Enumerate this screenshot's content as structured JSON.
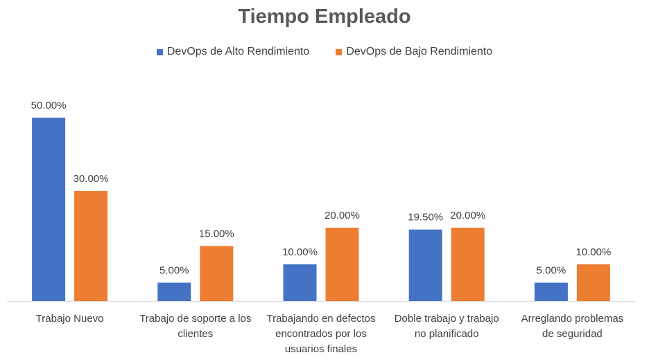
{
  "chart_data": {
    "type": "bar",
    "title": "Tiempo Empleado",
    "categories": [
      "Trabajo Nuevo",
      "Trabajo de soporte a los clientes",
      "Trabajando en defectos encontrados por los usuarios finales",
      "Doble trabajo y trabajo no planificado",
      "Arreglando problemas de seguridad"
    ],
    "category_lines": [
      [
        "Trabajo Nuevo"
      ],
      [
        "Trabajo de soporte a los",
        "clientes"
      ],
      [
        "Trabajando en defectos",
        "encontrados por los",
        "usuarios finales"
      ],
      [
        "Doble trabajo y trabajo",
        "no planificado"
      ],
      [
        "Arreglando problemas",
        "de seguridad"
      ]
    ],
    "series": [
      {
        "name": "DevOps de Alto Rendimiento",
        "color": "#4472C4",
        "values": [
          50.0,
          5.0,
          10.0,
          19.5,
          5.0
        ],
        "labels": [
          "50.00%",
          "5.00%",
          "10.00%",
          "19.50%",
          "5.00%"
        ]
      },
      {
        "name": "DevOps de Bajo Rendimiento",
        "color": "#ED7D31",
        "values": [
          30.0,
          15.0,
          20.0,
          20.0,
          10.0
        ],
        "labels": [
          "30.00%",
          "15.00%",
          "20.00%",
          "20.00%",
          "10.00%"
        ]
      }
    ],
    "xlabel": "",
    "ylabel": "",
    "ylim": [
      0,
      50
    ],
    "grid": false,
    "legend_position": "top"
  }
}
